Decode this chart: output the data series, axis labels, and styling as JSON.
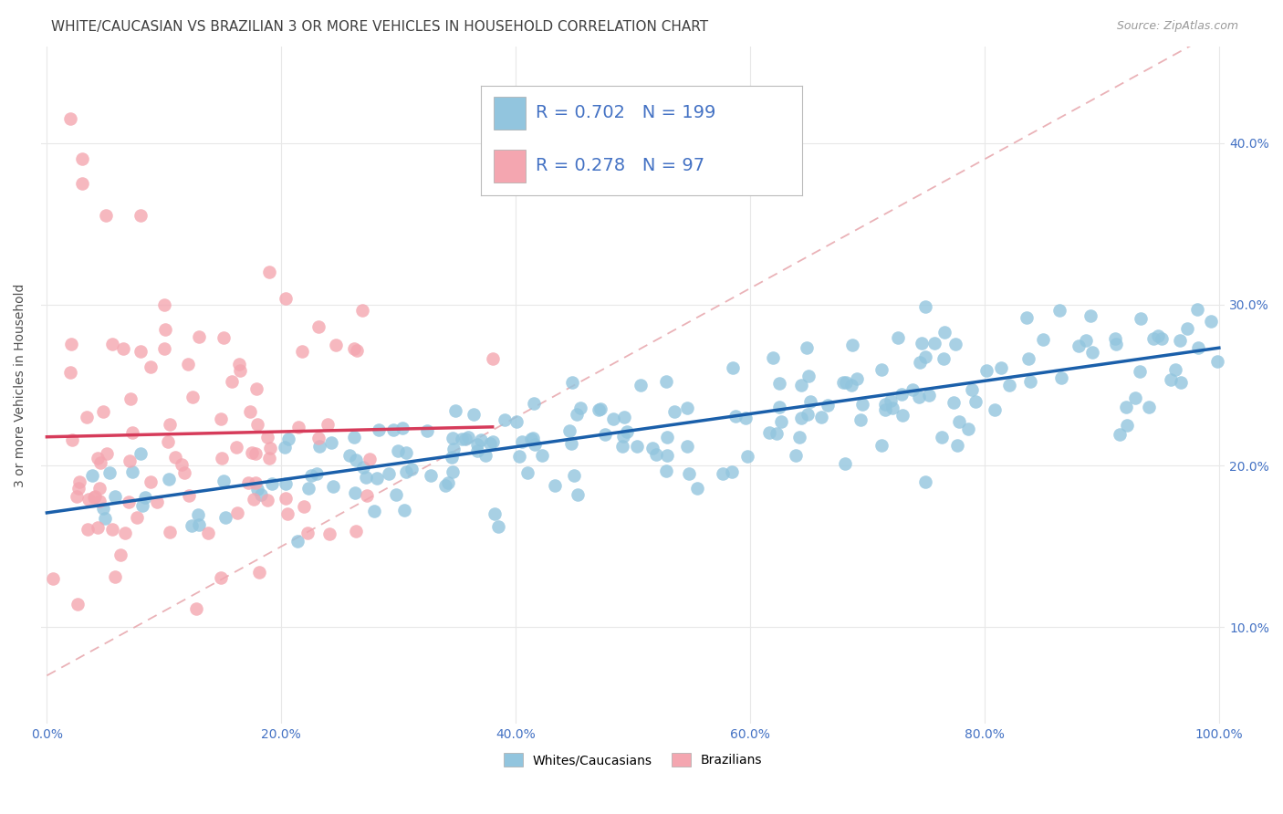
{
  "title": "WHITE/CAUCASIAN VS BRAZILIAN 3 OR MORE VEHICLES IN HOUSEHOLD CORRELATION CHART",
  "source": "Source: ZipAtlas.com",
  "ylabel": "3 or more Vehicles in Household",
  "xlim": [
    -0.005,
    1.005
  ],
  "ylim": [
    0.04,
    0.46
  ],
  "blue_R": 0.702,
  "blue_N": 199,
  "pink_R": 0.278,
  "pink_N": 97,
  "blue_color": "#92c5de",
  "pink_color": "#f4a6b0",
  "blue_line_color": "#1a5faa",
  "pink_line_color": "#d63b5a",
  "diag_line_color": "#e8aab0",
  "grid_color": "#e8e8e8",
  "title_color": "#404040",
  "axis_color": "#4472c4",
  "background_color": "#ffffff",
  "title_fontsize": 11,
  "legend_fontsize": 14
}
